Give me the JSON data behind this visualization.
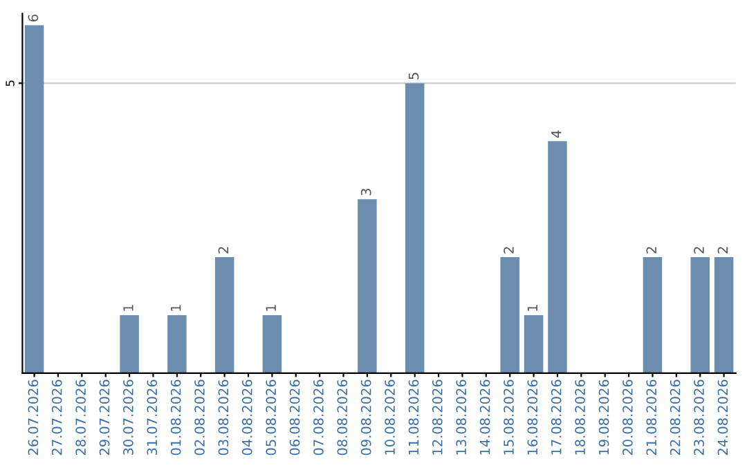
{
  "chart_data": {
    "type": "bar",
    "categories": [
      "26.07.2026",
      "27.07.2026",
      "28.07.2026",
      "29.07.2026",
      "30.07.2026",
      "31.07.2026",
      "01.08.2026",
      "02.08.2026",
      "03.08.2026",
      "04.08.2026",
      "05.08.2026",
      "06.08.2026",
      "07.08.2026",
      "08.08.2026",
      "09.08.2026",
      "10.08.2026",
      "11.08.2026",
      "12.08.2026",
      "13.08.2026",
      "14.08.2026",
      "15.08.2026",
      "16.08.2026",
      "17.08.2026",
      "18.08.2026",
      "19.08.2026",
      "20.08.2026",
      "21.08.2026",
      "22.08.2026",
      "23.08.2026",
      "24.08.2026"
    ],
    "values": [
      6,
      0,
      0,
      0,
      1,
      0,
      1,
      0,
      2,
      0,
      1,
      0,
      0,
      0,
      3,
      0,
      5,
      0,
      0,
      0,
      2,
      1,
      4,
      0,
      0,
      0,
      2,
      0,
      2,
      2
    ],
    "color": "#6d8daf",
    "value_labels": [
      "6",
      null,
      null,
      null,
      "1",
      null,
      "1",
      null,
      "2",
      null,
      "1",
      null,
      null,
      null,
      "3",
      null,
      "5",
      null,
      null,
      null,
      "2",
      "1",
      "4",
      null,
      null,
      null,
      "2",
      null,
      "2",
      "2"
    ],
    "ylim": [
      0,
      6.2
    ],
    "yticks": [
      5
    ],
    "grid": "y"
  }
}
